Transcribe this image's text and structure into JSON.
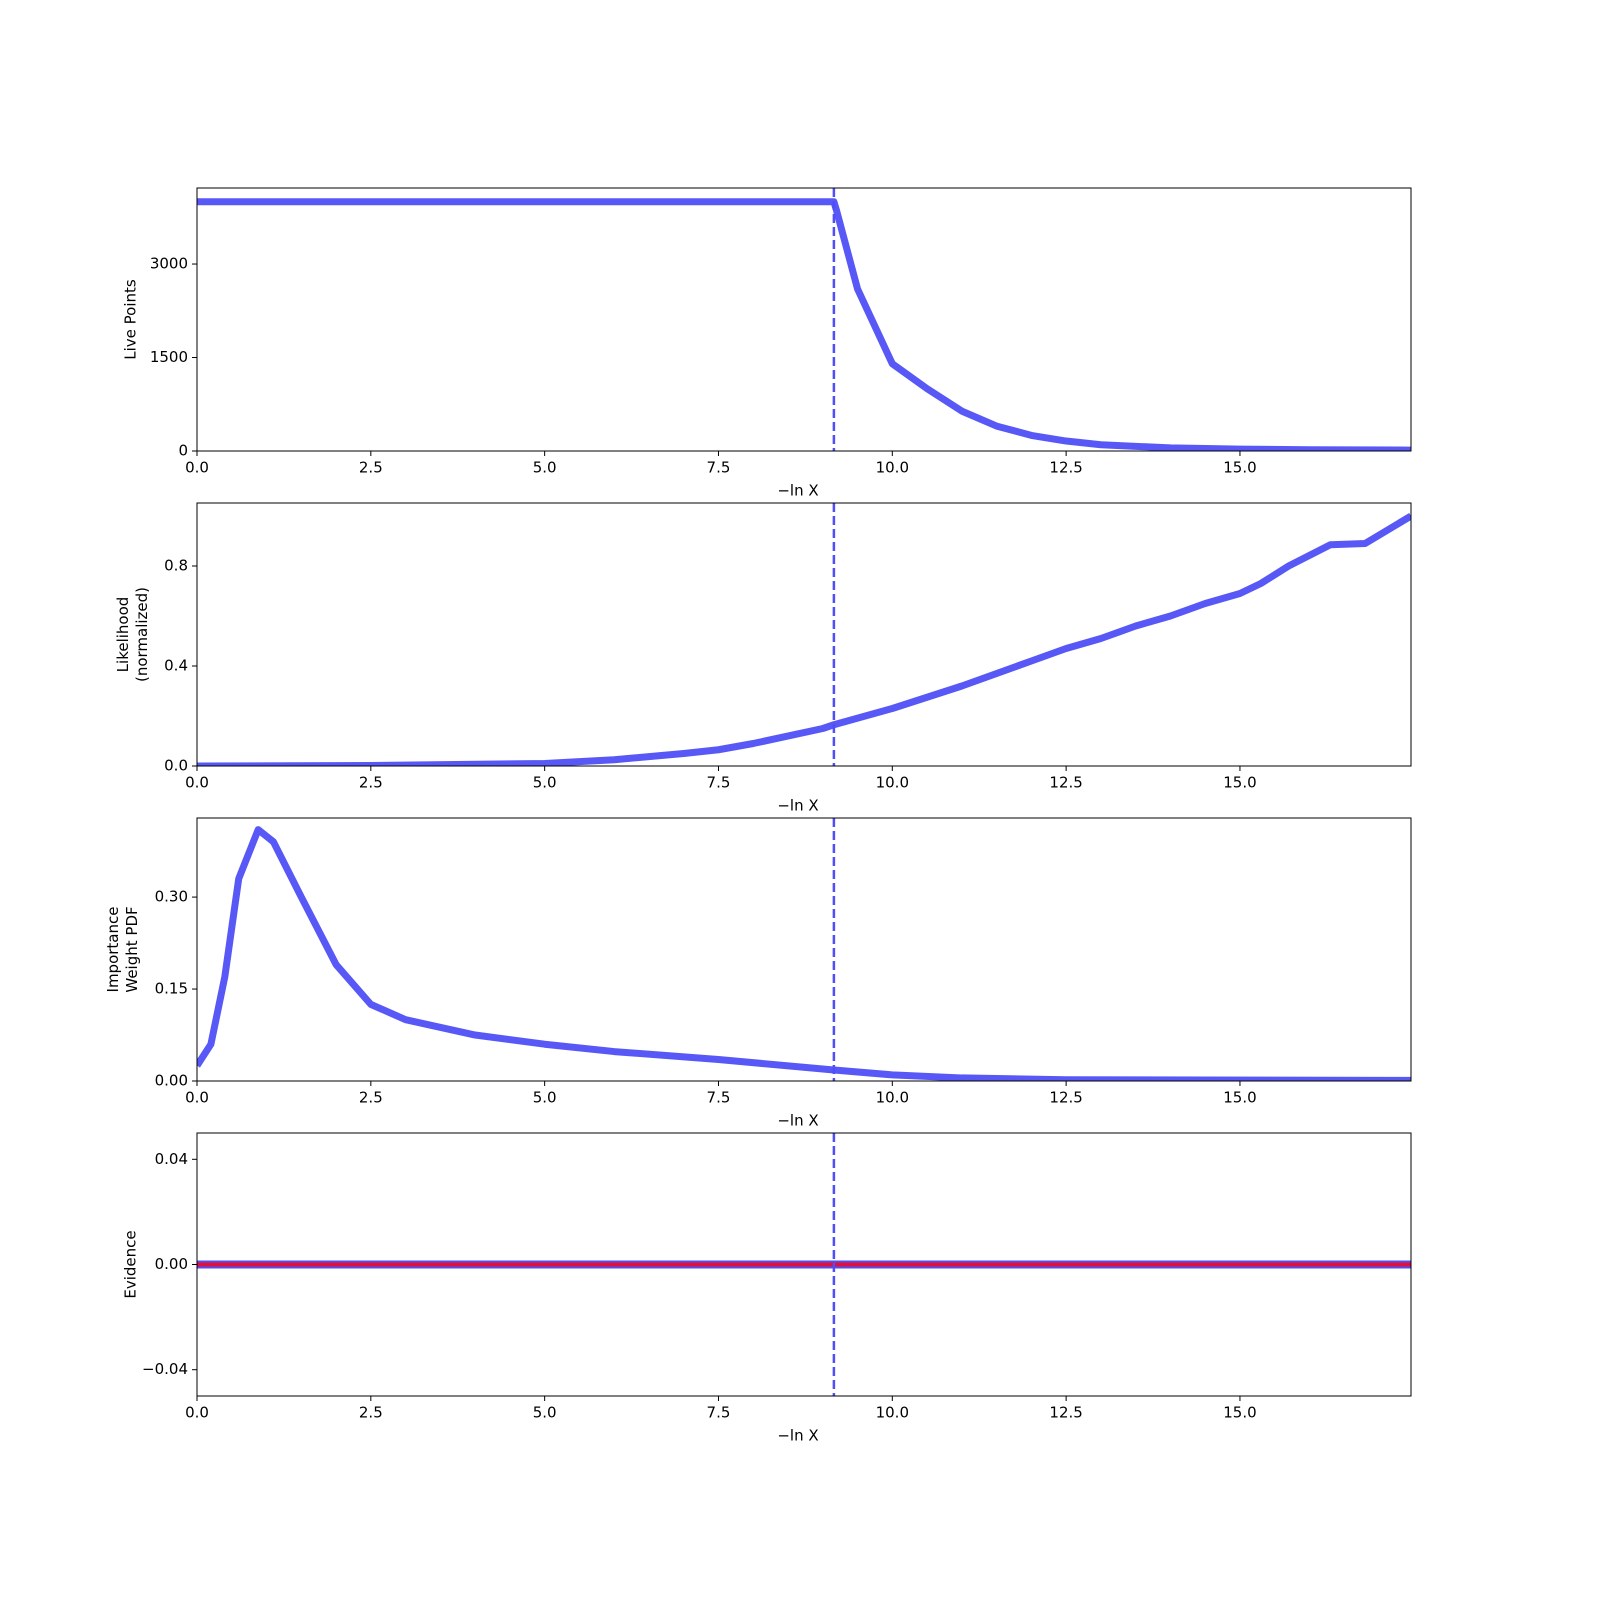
{
  "chart_data": [
    {
      "type": "line",
      "ylabel": [
        "Live Points"
      ],
      "xlabel": "−ln X",
      "x": [
        0,
        9.16,
        9.2,
        9.5,
        10,
        10.5,
        11,
        11.5,
        12,
        12.5,
        13,
        14,
        15,
        16,
        17.46
      ],
      "series": [
        {
          "color": "#4f4ff5",
          "values": [
            4000,
            4000,
            3850,
            2600,
            1400,
            1000,
            640,
            400,
            250,
            160,
            100,
            50,
            30,
            20,
            15
          ]
        }
      ],
      "xlim": [
        0,
        17.46
      ],
      "ylim": [
        0,
        4220
      ],
      "xticks": [
        {
          "value": 0,
          "label": "0.0"
        },
        2.5,
        {
          "value": 5,
          "label": "5.0"
        },
        7.5,
        {
          "value": 10,
          "label": "10.0"
        },
        12.5,
        {
          "value": 15,
          "label": "15.0"
        }
      ],
      "yticks": [
        0,
        1500,
        3000
      ],
      "vline": 9.16
    },
    {
      "type": "line",
      "ylabel": [
        "Likelihood",
        "(normalized)"
      ],
      "xlabel": "−ln X",
      "x": [
        0,
        2.5,
        5,
        6,
        7,
        7.5,
        8,
        9,
        9.16,
        10,
        11,
        12,
        12.5,
        13,
        13.5,
        14,
        14.5,
        15,
        15.3,
        15.7,
        16.3,
        16.8,
        17.46
      ],
      "series": [
        {
          "color": "#4f4ff5",
          "values": [
            0,
            0.002,
            0.01,
            0.025,
            0.05,
            0.065,
            0.09,
            0.15,
            0.165,
            0.23,
            0.32,
            0.42,
            0.47,
            0.51,
            0.56,
            0.6,
            0.65,
            0.69,
            0.73,
            0.8,
            0.885,
            0.89,
            1.0
          ]
        }
      ],
      "xlim": [
        0,
        17.46
      ],
      "ylim": [
        0,
        1.052
      ],
      "xticks": [
        {
          "value": 0,
          "label": "0.0"
        },
        2.5,
        {
          "value": 5,
          "label": "5.0"
        },
        7.5,
        {
          "value": 10,
          "label": "10.0"
        },
        12.5,
        {
          "value": 15,
          "label": "15.0"
        }
      ],
      "yticks": [
        {
          "value": 0,
          "label": "0.0"
        },
        0.4,
        0.8
      ],
      "vline": 9.16
    },
    {
      "type": "line",
      "ylabel": [
        "Importance",
        "Weight PDF"
      ],
      "xlabel": "−ln X",
      "x": [
        0,
        0.2,
        0.4,
        0.6,
        0.88,
        1.1,
        1.5,
        2,
        2.5,
        3,
        4,
        5,
        6,
        7.5,
        9.16,
        10,
        11,
        12.5,
        17.46
      ],
      "series": [
        {
          "color": "#4f4ff5",
          "values": [
            0.025,
            0.06,
            0.17,
            0.33,
            0.41,
            0.39,
            0.3,
            0.19,
            0.125,
            0.1,
            0.075,
            0.06,
            0.048,
            0.035,
            0.018,
            0.01,
            0.005,
            0.002,
            0.001
          ]
        }
      ],
      "xlim": [
        0,
        17.46
      ],
      "ylim": [
        0,
        0.429
      ],
      "xticks": [
        {
          "value": 0,
          "label": "0.0"
        },
        2.5,
        {
          "value": 5,
          "label": "5.0"
        },
        7.5,
        {
          "value": 10,
          "label": "10.0"
        },
        12.5,
        {
          "value": 15,
          "label": "15.0"
        }
      ],
      "yticks": [
        {
          "value": 0,
          "label": "0.00"
        },
        0.15,
        {
          "value": 0.3,
          "label": "0.30"
        }
      ],
      "vline": 9.16
    },
    {
      "type": "line",
      "ylabel": [
        "Evidence"
      ],
      "xlabel": "−ln X",
      "x": [
        0,
        17.46
      ],
      "series": [
        {
          "color": "#e0103a",
          "edge_color": "#4f4ff5",
          "values": [
            0,
            0
          ]
        }
      ],
      "xlim": [
        0,
        17.46
      ],
      "ylim": [
        -0.05,
        0.05
      ],
      "xticks": [
        {
          "value": 0,
          "label": "0.0"
        },
        2.5,
        {
          "value": 5,
          "label": "5.0"
        },
        7.5,
        {
          "value": 10,
          "label": "10.0"
        },
        12.5,
        {
          "value": 15,
          "label": "15.0"
        }
      ],
      "yticks": [
        {
          "value": -0.04,
          "label": "−0.04"
        },
        {
          "value": 0,
          "label": "0.00"
        },
        0.04
      ],
      "vline": 9.16
    }
  ]
}
